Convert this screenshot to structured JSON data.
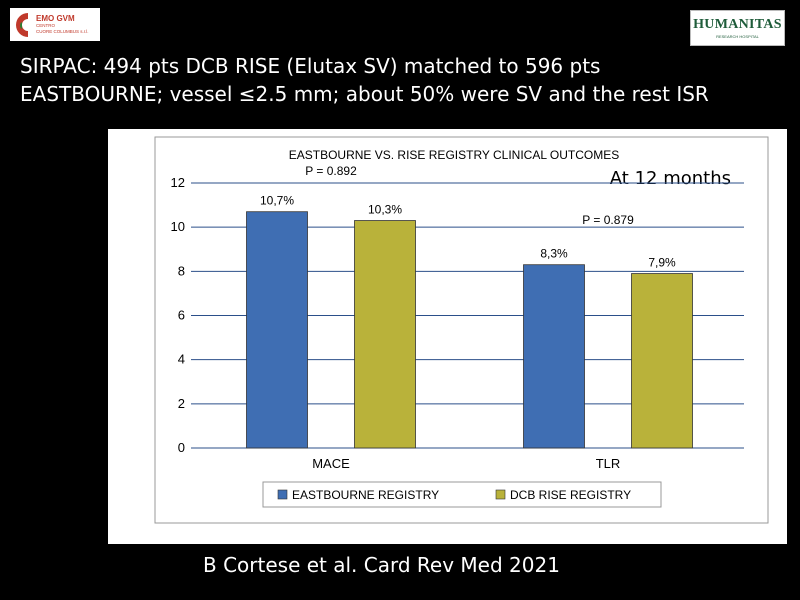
{
  "header": {
    "line1": "SIRPAC: 494 pts  DCB RISE (Elutax SV) matched to 596 pts",
    "line2": "EASTBOURNE; vessel ≤2.5 mm; about 50% were SV and the rest ISR"
  },
  "logos": {
    "left": {
      "line1": "EMO GVM",
      "line2": "CENTRO",
      "line3": "CUORE COLUMBUS s.r.l."
    },
    "right": {
      "name": "HUMANITAS",
      "sub": "RESEARCH HOSPITAL"
    }
  },
  "citation": "B Cortese et al. Card Rev Med 2021",
  "colors": {
    "eastbourne": "#3f6eb3",
    "rise": "#b9b23a",
    "background": "#000000"
  },
  "chart_data": {
    "type": "bar",
    "title": "EASTBOURNE VS. RISE REGISTRY CLINICAL OUTCOMES",
    "annotation": "At 12 months",
    "categories": [
      "MACE",
      "TLR"
    ],
    "series": [
      {
        "name": "EASTBOURNE REGISTRY",
        "values": [
          10.7,
          8.3
        ],
        "labels": [
          "10,7%",
          "8,3%"
        ]
      },
      {
        "name": "DCB RISE REGISTRY",
        "values": [
          10.3,
          7.9
        ],
        "labels": [
          "10,3%",
          "7,9%"
        ]
      }
    ],
    "p_values": [
      "P = 0.892",
      "P = 0.879"
    ],
    "ylim": [
      0,
      12
    ],
    "yticks": [
      0,
      2,
      4,
      6,
      8,
      10,
      12
    ],
    "grid": true,
    "legend": "bottom"
  }
}
